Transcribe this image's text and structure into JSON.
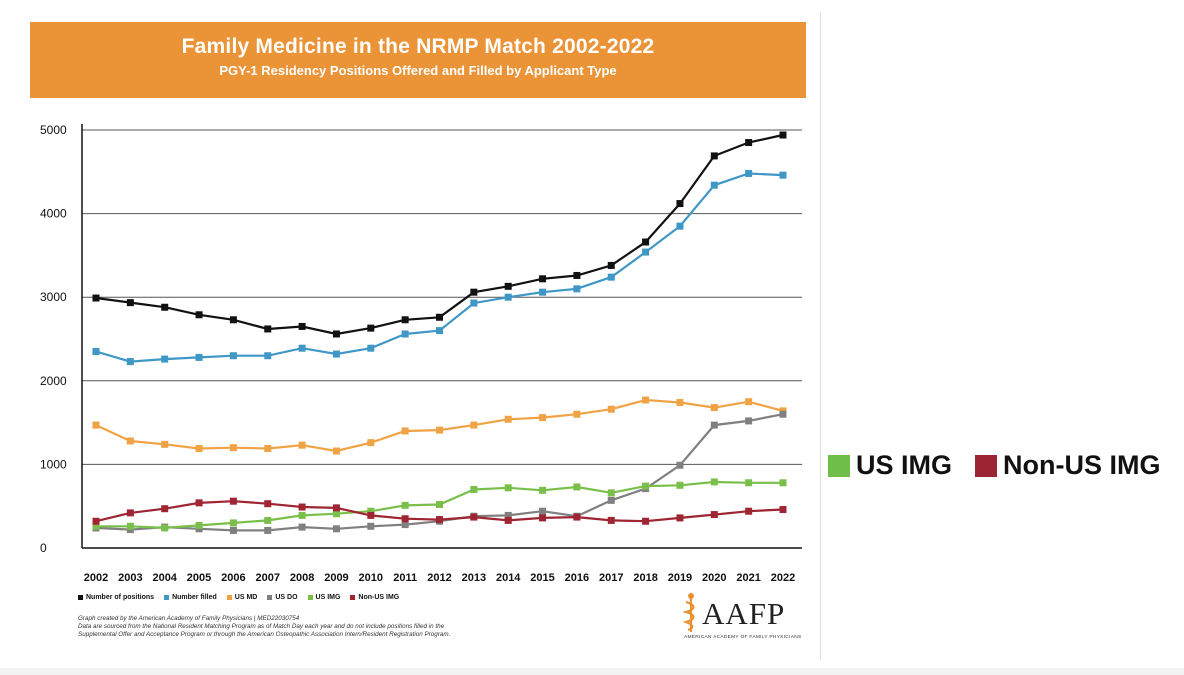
{
  "header": {
    "title": "Family Medicine in the NRMP Match 2002-2022",
    "subtitle": "PGY-1 Residency Positions Offered and Filled by Applicant Type"
  },
  "chart_data": {
    "type": "line",
    "title": "Family Medicine in the NRMP Match 2002-2022",
    "subtitle": "PGY-1 Residency Positions Offered and Filled by Applicant Type",
    "xlabel": "",
    "ylabel": "",
    "ylim": [
      0,
      5000
    ],
    "yticks": [
      "0",
      "1000",
      "2000",
      "3000",
      "4000",
      "5000"
    ],
    "categories": [
      "2002",
      "2003",
      "2004",
      "2005",
      "2006",
      "2007",
      "2008",
      "2009",
      "2010",
      "2011",
      "2012",
      "2013",
      "2014",
      "2015",
      "2016",
      "2017",
      "2018",
      "2019",
      "2020",
      "2021",
      "2022"
    ],
    "series": [
      {
        "name": "Number of positions",
        "color": "#111111",
        "values": [
          2990,
          2935,
          2880,
          2790,
          2730,
          2620,
          2650,
          2560,
          2630,
          2730,
          2760,
          3060,
          3130,
          3220,
          3260,
          3380,
          3660,
          4120,
          4690,
          4850,
          4940
        ]
      },
      {
        "name": "Number filled",
        "color": "#3f97c6",
        "values": [
          2350,
          2230,
          2260,
          2280,
          2300,
          2300,
          2390,
          2320,
          2390,
          2560,
          2600,
          2930,
          3000,
          3060,
          3100,
          3240,
          3540,
          3850,
          4340,
          4480,
          4460
        ]
      },
      {
        "name": "US MD",
        "color": "#f0a345",
        "values": [
          1470,
          1280,
          1240,
          1190,
          1200,
          1190,
          1230,
          1160,
          1260,
          1400,
          1410,
          1470,
          1540,
          1560,
          1600,
          1660,
          1770,
          1740,
          1680,
          1750,
          1640
        ]
      },
      {
        "name": "US DO",
        "color": "#808080",
        "values": [
          240,
          220,
          250,
          230,
          210,
          210,
          250,
          230,
          260,
          280,
          320,
          380,
          390,
          440,
          380,
          570,
          710,
          990,
          1470,
          1520,
          1600
        ]
      },
      {
        "name": "US IMG",
        "color": "#7abf4a",
        "values": [
          260,
          260,
          240,
          270,
          300,
          330,
          390,
          410,
          440,
          510,
          520,
          700,
          720,
          690,
          730,
          660,
          740,
          750,
          790,
          780,
          780
        ]
      },
      {
        "name": "Non-US IMG",
        "color": "#9e2531",
        "values": [
          320,
          420,
          470,
          540,
          560,
          530,
          490,
          480,
          390,
          350,
          340,
          370,
          330,
          360,
          370,
          330,
          320,
          360,
          400,
          440,
          460
        ]
      }
    ]
  },
  "footnote": {
    "line1": "Graph created by the American Academy of Family Physicians  |  MED22030754",
    "line2": "Data are sourced from the National Resident Matching Program as of Match Day each year and  do not include positions filled in the",
    "line3": "Supplemental Offer and Acceptance Program or through the American Osteopathic Association Intern/Resident Registration Program."
  },
  "logo": {
    "wordmark": "AAFP",
    "tagline": "AMERICAN ACADEMY OF FAMILY PHYSICIANS"
  },
  "callout": {
    "us_img_label": "US IMG",
    "non_us_img_label": "Non-US IMG",
    "us_img_color": "#6fbe4a",
    "non_us_img_color": "#9b2532"
  }
}
